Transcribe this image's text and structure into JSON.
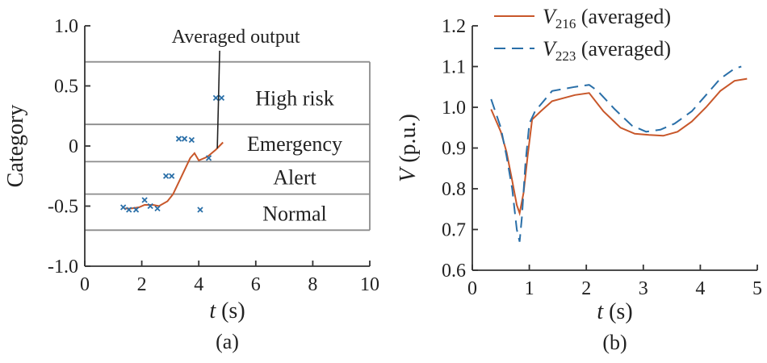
{
  "chart_data": [
    {
      "type": "scatter",
      "panel_label": "(a)",
      "xlabel": "t",
      "xunit": "(s)",
      "ylabel": "Category",
      "xlim": [
        0,
        10
      ],
      "ylim": [
        -1.0,
        1.0
      ],
      "xticks": [
        0,
        2,
        4,
        6,
        8,
        10
      ],
      "xtick_labels": [
        "0",
        "2",
        "4",
        "6",
        "8",
        "10"
      ],
      "yticks": [
        1.0,
        0.5,
        0,
        -0.5,
        -1.0
      ],
      "ytick_labels": [
        "1.0",
        "0.5",
        "0",
        "-0.5",
        "-1.0"
      ],
      "zone_boundaries": [
        -0.7,
        -0.4,
        -0.13,
        0.18,
        0.7
      ],
      "zones": [
        {
          "label": "High risk",
          "y": 0.4
        },
        {
          "label": "Emergency",
          "y": 0.02
        },
        {
          "label": "Alert",
          "y": -0.26
        },
        {
          "label": "Normal",
          "y": -0.56
        }
      ],
      "annotation": {
        "text": "Averaged output",
        "text_at": [
          5.3,
          0.86
        ],
        "points_to": [
          4.65,
          -0.02
        ]
      },
      "colors": {
        "points": "#2a6fa8",
        "line": "#c8572a",
        "zone_lines": "#8c8c8c"
      },
      "points": {
        "x": [
          1.35,
          1.55,
          1.8,
          2.1,
          2.3,
          2.55,
          2.85,
          3.05,
          3.3,
          3.5,
          3.75,
          4.05,
          4.35,
          4.6,
          4.8
        ],
        "y": [
          -0.51,
          -0.53,
          -0.53,
          -0.45,
          -0.5,
          -0.52,
          -0.25,
          -0.25,
          0.06,
          0.06,
          0.05,
          -0.53,
          -0.1,
          0.4,
          0.4
        ]
      },
      "series": [
        {
          "x": [
            1.4,
            1.6,
            1.9,
            2.1,
            2.4,
            2.6,
            2.9,
            3.1,
            3.4,
            3.7,
            3.85,
            4.0,
            4.3,
            4.6,
            4.85
          ],
          "values": [
            -0.52,
            -0.52,
            -0.51,
            -0.49,
            -0.49,
            -0.5,
            -0.46,
            -0.4,
            -0.25,
            -0.1,
            -0.06,
            -0.12,
            -0.09,
            -0.03,
            0.03
          ]
        }
      ]
    },
    {
      "type": "line",
      "panel_label": "(b)",
      "xlabel": "t",
      "xunit": "(s)",
      "ylabel": "V",
      "yunit": "(p.u.)",
      "xlim": [
        0,
        5
      ],
      "ylim": [
        0.6,
        1.2
      ],
      "xticks": [
        0,
        1,
        2,
        3,
        4,
        5
      ],
      "xtick_labels": [
        "0",
        "1",
        "2",
        "3",
        "4",
        "5"
      ],
      "yticks": [
        1.2,
        1.1,
        1.0,
        0.9,
        0.8,
        0.7,
        0.6
      ],
      "ytick_labels": [
        "1.2",
        "1.1",
        "1.0",
        "0.9",
        "0.8",
        "0.7",
        "0.6"
      ],
      "legend_position": "top-right",
      "series": [
        {
          "name_main": "V",
          "name_sub": "216",
          "name_rest": " (averaged)",
          "color": "#c8572a",
          "dash": "solid",
          "x": [
            0.33,
            0.5,
            0.6,
            0.7,
            0.78,
            0.83,
            0.9,
            0.97,
            1.05,
            1.2,
            1.4,
            1.8,
            2.05,
            2.3,
            2.6,
            2.85,
            3.1,
            3.35,
            3.6,
            3.85,
            4.1,
            4.35,
            4.6,
            4.82
          ],
          "values": [
            0.995,
            0.94,
            0.89,
            0.82,
            0.76,
            0.74,
            0.79,
            0.88,
            0.97,
            0.99,
            1.015,
            1.03,
            1.035,
            0.99,
            0.95,
            0.935,
            0.932,
            0.93,
            0.94,
            0.965,
            1.0,
            1.04,
            1.065,
            1.07
          ]
        },
        {
          "name_main": "V",
          "name_sub": "223",
          "name_rest": " (averaged)",
          "color": "#2a6fa8",
          "dash": "dashed",
          "x": [
            0.33,
            0.5,
            0.6,
            0.7,
            0.78,
            0.83,
            0.87,
            0.93,
            1.0,
            1.1,
            1.4,
            1.8,
            2.05,
            2.2,
            2.5,
            2.8,
            3.05,
            3.3,
            3.55,
            3.85,
            4.1,
            4.35,
            4.6,
            4.72
          ],
          "values": [
            1.02,
            0.95,
            0.88,
            0.8,
            0.7,
            0.67,
            0.73,
            0.86,
            0.96,
            0.99,
            1.04,
            1.05,
            1.055,
            1.04,
            0.995,
            0.955,
            0.94,
            0.945,
            0.96,
            0.99,
            1.03,
            1.07,
            1.095,
            1.1
          ]
        }
      ]
    }
  ]
}
